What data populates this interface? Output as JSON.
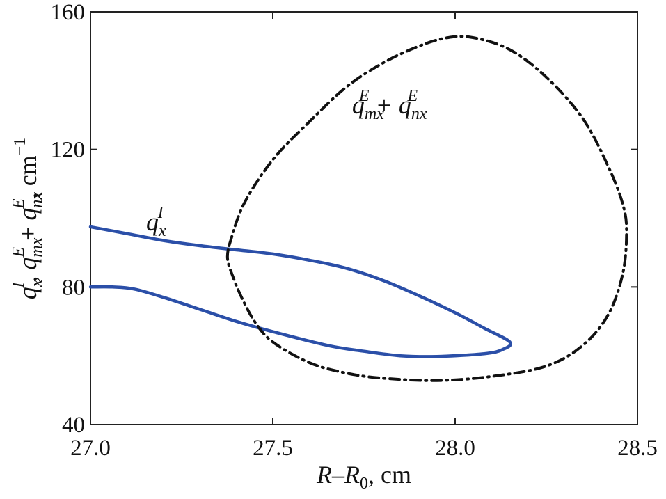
{
  "chart_data": {
    "type": "line",
    "title": "",
    "xlabel": {
      "parts": [
        "R",
        "–",
        "R",
        "0",
        ", cm"
      ]
    },
    "ylabel": {
      "parts": [
        "q",
        "x",
        "I",
        ", ",
        "q",
        "mx",
        "E",
        " + ",
        "q",
        "nx",
        "E",
        ", cm",
        "−1"
      ]
    },
    "xlim": [
      27.0,
      28.5
    ],
    "ylim": [
      40,
      160
    ],
    "xticks": [
      27.0,
      27.5,
      28.0,
      28.5
    ],
    "xtick_labels": [
      "27.0",
      "27.5",
      "28.0",
      "28.5"
    ],
    "yticks": [
      40,
      80,
      120,
      160
    ],
    "ytick_labels": [
      "40",
      "80",
      "120",
      "160"
    ],
    "grid": false,
    "legend": "none",
    "series": [
      {
        "color": "#2b4fa8",
        "style": "solid",
        "points": [
          [
            27.0,
            97.5
          ],
          [
            27.1,
            95.5
          ],
          [
            27.2,
            93.5
          ],
          [
            27.3,
            92.0
          ],
          [
            27.4,
            90.8
          ],
          [
            27.5,
            89.6
          ],
          [
            27.6,
            87.8
          ],
          [
            27.7,
            85.5
          ],
          [
            27.8,
            82.0
          ],
          [
            27.9,
            77.5
          ],
          [
            28.0,
            72.5
          ],
          [
            28.08,
            68.0
          ],
          [
            28.15,
            64.0
          ],
          [
            28.13,
            61.8
          ],
          [
            28.08,
            60.6
          ],
          [
            27.95,
            59.8
          ],
          [
            27.85,
            60.0
          ],
          [
            27.75,
            61.3
          ],
          [
            27.65,
            63.0
          ],
          [
            27.5,
            67.0
          ],
          [
            27.4,
            70.0
          ],
          [
            27.3,
            73.5
          ],
          [
            27.2,
            77.0
          ],
          [
            27.12,
            79.4
          ],
          [
            27.06,
            80.0
          ],
          [
            27.0,
            80.0
          ]
        ]
      },
      {
        "color": "#111111",
        "style": "dashdot",
        "closed": true,
        "points": [
          [
            27.38,
            92.0
          ],
          [
            27.42,
            104.0
          ],
          [
            27.5,
            117.0
          ],
          [
            27.6,
            128.0
          ],
          [
            27.7,
            138.0
          ],
          [
            27.8,
            145.0
          ],
          [
            27.9,
            150.0
          ],
          [
            27.98,
            152.5
          ],
          [
            28.05,
            152.5
          ],
          [
            28.15,
            149.0
          ],
          [
            28.25,
            141.0
          ],
          [
            28.35,
            129.0
          ],
          [
            28.42,
            115.0
          ],
          [
            28.46,
            104.0
          ],
          [
            28.47,
            96.0
          ],
          [
            28.46,
            84.0
          ],
          [
            28.42,
            72.0
          ],
          [
            28.35,
            63.0
          ],
          [
            28.25,
            57.0
          ],
          [
            28.1,
            54.0
          ],
          [
            27.95,
            52.8
          ],
          [
            27.8,
            53.5
          ],
          [
            27.7,
            55.0
          ],
          [
            27.6,
            58.0
          ],
          [
            27.5,
            64.0
          ],
          [
            27.45,
            70.0
          ],
          [
            27.41,
            78.0
          ],
          [
            27.38,
            86.0
          ]
        ]
      }
    ],
    "annotations": [
      {
        "parts": [
          "q",
          "mx",
          "E",
          " + ",
          "q",
          "nx",
          "E"
        ],
        "x": 27.82,
        "y": 130.5
      },
      {
        "parts": [
          "q",
          "x",
          "I"
        ],
        "x": 27.18,
        "y": 96.5
      }
    ]
  }
}
